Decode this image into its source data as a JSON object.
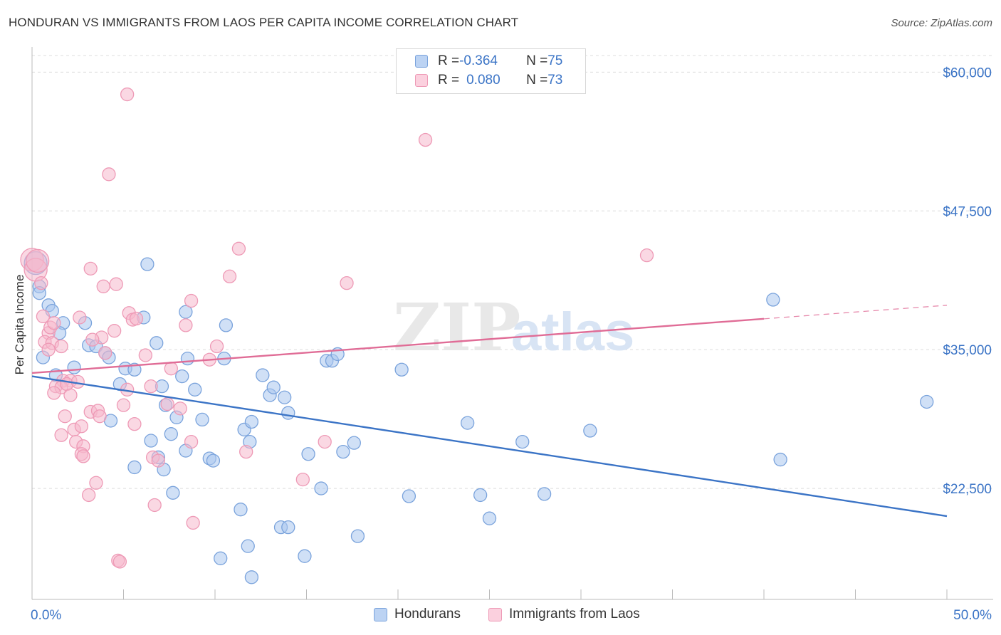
{
  "title": "HONDURAN VS IMMIGRANTS FROM LAOS PER CAPITA INCOME CORRELATION CHART",
  "source": "Source: ZipAtlas.com",
  "watermark": {
    "zip": "ZIP",
    "atlas": "atlas"
  },
  "legend": {
    "rows": [
      {
        "r_label": "R = ",
        "r_value": "-0.364",
        "n_label": "N = ",
        "n_value": "75"
      },
      {
        "r_label": "R = ",
        "r_value": "0.080",
        "n_label": "N = ",
        "n_value": "73"
      }
    ]
  },
  "bottom_legend": [
    "Hondurans",
    "Immigrants from Laos"
  ],
  "chart_data": {
    "type": "scatter",
    "ylabel": "Per Capita Income",
    "x_tick_labels": [
      "0.0%",
      "50.0%"
    ],
    "y_tick_labels": [
      "$22,500",
      "$35,000",
      "$47,500",
      "$60,000"
    ],
    "xlim": [
      0,
      50
    ],
    "ylim": [
      12500,
      61500
    ],
    "y_ticks": [
      22500,
      35000,
      47500,
      60000
    ],
    "colors": {
      "blue": "#3b74c6",
      "blue_fill": "#a9c6ee",
      "pink": "#e06c96",
      "pink_fill": "#f5b8cc",
      "grid": "#dcdcdc",
      "axis_text": "#3b74c6"
    },
    "series": [
      {
        "name": "Hondurans",
        "color": "#3b74c6",
        "trend": {
          "x0": 0,
          "y0": 32600,
          "x1": 50,
          "y1": 20000,
          "dashed_from": null
        },
        "points": [
          [
            0.2,
            42800
          ],
          [
            0.4,
            40700
          ],
          [
            0.4,
            40100
          ],
          [
            0.9,
            39000
          ],
          [
            1.1,
            38500
          ],
          [
            0.6,
            34300
          ],
          [
            1.7,
            37400
          ],
          [
            2.9,
            37400
          ],
          [
            1.5,
            36500
          ],
          [
            3.1,
            35400
          ],
          [
            3.5,
            35300
          ],
          [
            4.0,
            34700
          ],
          [
            4.2,
            34300
          ],
          [
            6.3,
            42700
          ],
          [
            6.1,
            37900
          ],
          [
            6.8,
            35600
          ],
          [
            8.5,
            34200
          ],
          [
            10.5,
            34200
          ],
          [
            10.6,
            37200
          ],
          [
            16.1,
            34000
          ],
          [
            16.4,
            34000
          ],
          [
            16.7,
            34600
          ],
          [
            20.2,
            33200
          ],
          [
            1.3,
            32700
          ],
          [
            2.3,
            33400
          ],
          [
            4.8,
            31900
          ],
          [
            5.1,
            33300
          ],
          [
            5.6,
            33200
          ],
          [
            7.1,
            31700
          ],
          [
            8.2,
            32600
          ],
          [
            8.9,
            31400
          ],
          [
            12.6,
            32700
          ],
          [
            13.0,
            30900
          ],
          [
            13.2,
            31600
          ],
          [
            13.8,
            30700
          ],
          [
            4.3,
            28600
          ],
          [
            7.3,
            30000
          ],
          [
            7.9,
            28900
          ],
          [
            9.3,
            28700
          ],
          [
            11.6,
            27800
          ],
          [
            12.0,
            28500
          ],
          [
            14.0,
            29300
          ],
          [
            6.5,
            26800
          ],
          [
            6.9,
            25300
          ],
          [
            7.6,
            27400
          ],
          [
            8.4,
            25900
          ],
          [
            9.7,
            25200
          ],
          [
            9.9,
            25000
          ],
          [
            11.9,
            26700
          ],
          [
            15.1,
            25600
          ],
          [
            17.0,
            25800
          ],
          [
            17.6,
            26600
          ],
          [
            23.8,
            28400
          ],
          [
            26.8,
            26700
          ],
          [
            30.5,
            27700
          ],
          [
            40.9,
            25100
          ],
          [
            48.9,
            30300
          ],
          [
            40.5,
            39500
          ],
          [
            5.6,
            24400
          ],
          [
            7.2,
            24200
          ],
          [
            7.7,
            22100
          ],
          [
            11.4,
            20600
          ],
          [
            11.8,
            17300
          ],
          [
            13.6,
            19000
          ],
          [
            14.0,
            19000
          ],
          [
            14.9,
            16400
          ],
          [
            15.8,
            22500
          ],
          [
            17.8,
            18200
          ],
          [
            20.6,
            21800
          ],
          [
            24.5,
            21900
          ],
          [
            25.0,
            19800
          ],
          [
            28.0,
            22000
          ],
          [
            10.3,
            16200
          ],
          [
            12.0,
            14500
          ],
          [
            8.4,
            38400
          ]
        ]
      },
      {
        "name": "Immigrants from Laos",
        "color": "#e06c96",
        "trend": {
          "x0": 0,
          "y0": 32900,
          "x1": 50,
          "y1": 39000,
          "dashed_from": 40
        },
        "points": [
          [
            0.0,
            43100
          ],
          [
            0.2,
            42200
          ],
          [
            0.5,
            41000
          ],
          [
            0.6,
            38000
          ],
          [
            0.9,
            36500
          ],
          [
            1.0,
            37000
          ],
          [
            1.2,
            37400
          ],
          [
            0.7,
            35700
          ],
          [
            1.1,
            35600
          ],
          [
            1.6,
            35300
          ],
          [
            0.9,
            35000
          ],
          [
            1.7,
            32200
          ],
          [
            2.1,
            32200
          ],
          [
            2.6,
            37900
          ],
          [
            3.2,
            42300
          ],
          [
            3.9,
            40700
          ],
          [
            4.6,
            40900
          ],
          [
            4.5,
            36700
          ],
          [
            3.8,
            36100
          ],
          [
            4.0,
            34700
          ],
          [
            3.3,
            35900
          ],
          [
            5.3,
            38300
          ],
          [
            5.5,
            37700
          ],
          [
            6.2,
            34500
          ],
          [
            7.6,
            33300
          ],
          [
            8.4,
            37200
          ],
          [
            8.7,
            39400
          ],
          [
            9.7,
            34100
          ],
          [
            10.8,
            41600
          ],
          [
            17.2,
            41000
          ],
          [
            21.5,
            53900
          ],
          [
            33.6,
            43500
          ],
          [
            4.2,
            50800
          ],
          [
            5.2,
            58000
          ],
          [
            1.3,
            31700
          ],
          [
            1.6,
            31600
          ],
          [
            1.9,
            31900
          ],
          [
            2.5,
            32100
          ],
          [
            5.2,
            31400
          ],
          [
            6.5,
            31700
          ],
          [
            1.2,
            31100
          ],
          [
            2.1,
            30900
          ],
          [
            1.8,
            29000
          ],
          [
            2.3,
            27800
          ],
          [
            2.7,
            28100
          ],
          [
            3.2,
            29400
          ],
          [
            3.6,
            29500
          ],
          [
            3.7,
            29000
          ],
          [
            5.0,
            30000
          ],
          [
            5.6,
            28300
          ],
          [
            7.4,
            30100
          ],
          [
            8.1,
            29700
          ],
          [
            1.6,
            27300
          ],
          [
            2.4,
            26700
          ],
          [
            2.8,
            26300
          ],
          [
            2.7,
            25600
          ],
          [
            2.8,
            25400
          ],
          [
            6.6,
            25300
          ],
          [
            6.9,
            25000
          ],
          [
            8.7,
            26700
          ],
          [
            11.7,
            25800
          ],
          [
            3.1,
            21900
          ],
          [
            3.5,
            23000
          ],
          [
            6.7,
            21000
          ],
          [
            8.8,
            19400
          ],
          [
            14.8,
            23300
          ],
          [
            16.0,
            26700
          ],
          [
            4.7,
            16000
          ],
          [
            4.8,
            15900
          ],
          [
            5.7,
            37800
          ],
          [
            11.3,
            44100
          ],
          [
            0.3,
            43000
          ],
          [
            10.1,
            35300
          ]
        ]
      }
    ]
  }
}
